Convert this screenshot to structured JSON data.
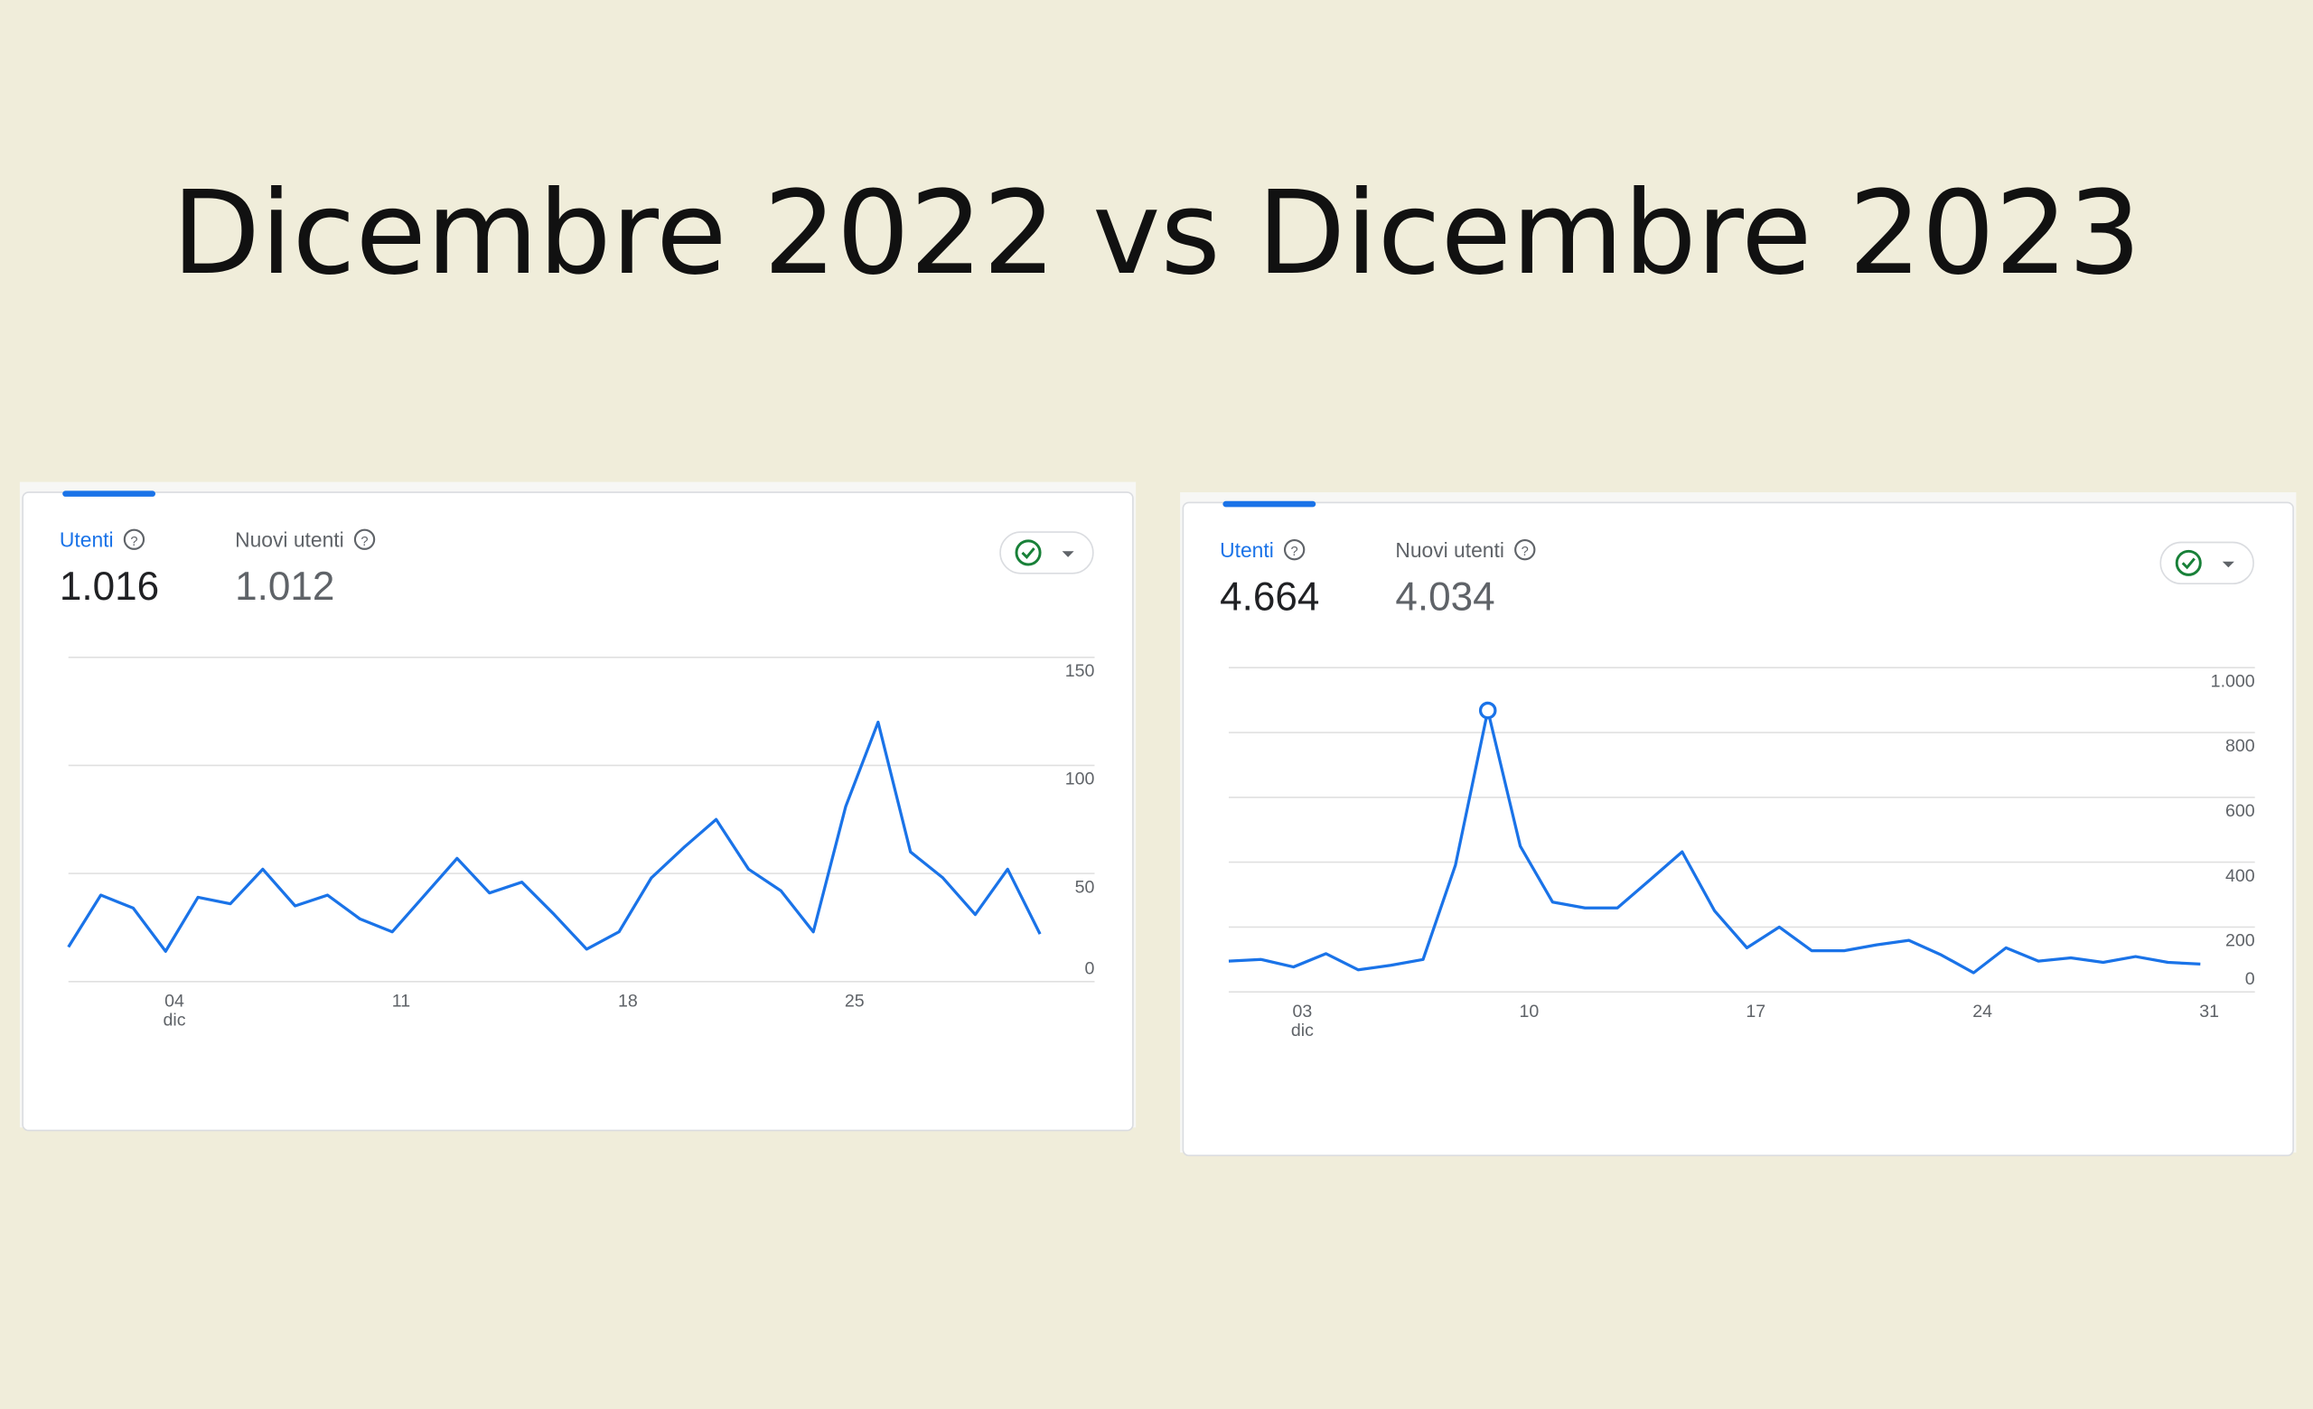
{
  "title": "Dicembre 2022 vs Dicembre 2023",
  "chart_data": [
    {
      "type": "line",
      "metrics": [
        {
          "name": "Utenti",
          "value": "1.016"
        },
        {
          "name": "Nuovi utenti",
          "value": "1.012"
        }
      ],
      "x": [
        1,
        2,
        3,
        4,
        5,
        6,
        7,
        8,
        9,
        10,
        11,
        12,
        13,
        14,
        15,
        16,
        17,
        18,
        19,
        20,
        21,
        22,
        23,
        24,
        25,
        26,
        27,
        28,
        29,
        30,
        31
      ],
      "xlim": [
        1,
        31
      ],
      "xticks": [
        {
          "value": 4,
          "label": "04"
        },
        11,
        18,
        25
      ],
      "x_sublabel": "dic",
      "ylim": [
        0,
        150
      ],
      "yticks": [
        0,
        50,
        100,
        150
      ],
      "grid": true,
      "color": "#1a73e8",
      "values": [
        16,
        40,
        34,
        14,
        39,
        36,
        52,
        35,
        40,
        29,
        23,
        40,
        57,
        41,
        46,
        31,
        15,
        23,
        48,
        62,
        75,
        52,
        42,
        23,
        81,
        120,
        60,
        48,
        31,
        52,
        22
      ]
    },
    {
      "type": "line",
      "metrics": [
        {
          "name": "Utenti",
          "value": "4.664"
        },
        {
          "name": "Nuovi utenti",
          "value": "4.034"
        }
      ],
      "x": [
        1,
        2,
        3,
        4,
        5,
        6,
        7,
        8,
        9,
        10,
        11,
        12,
        13,
        14,
        15,
        16,
        17,
        18,
        19,
        20,
        21,
        22,
        23,
        24,
        25,
        26,
        27,
        28,
        29,
        30,
        31
      ],
      "xlim": [
        1,
        31
      ],
      "xticks": [
        {
          "value": 3,
          "label": "03"
        },
        10,
        17,
        24,
        31
      ],
      "x_sublabel": "dic",
      "ylim": [
        0,
        1000
      ],
      "yticks": [
        0,
        200,
        400,
        600,
        800,
        {
          "value": 1000,
          "label": "1.000"
        }
      ],
      "grid": true,
      "color": "#1a73e8",
      "highlight_x": 9,
      "values": [
        95,
        100,
        77,
        118,
        68,
        82,
        100,
        391,
        868,
        450,
        277,
        259,
        259,
        345,
        432,
        250,
        136,
        200,
        127,
        127,
        145,
        159,
        114,
        59,
        136,
        95,
        105,
        91,
        109,
        91,
        86
      ]
    }
  ]
}
